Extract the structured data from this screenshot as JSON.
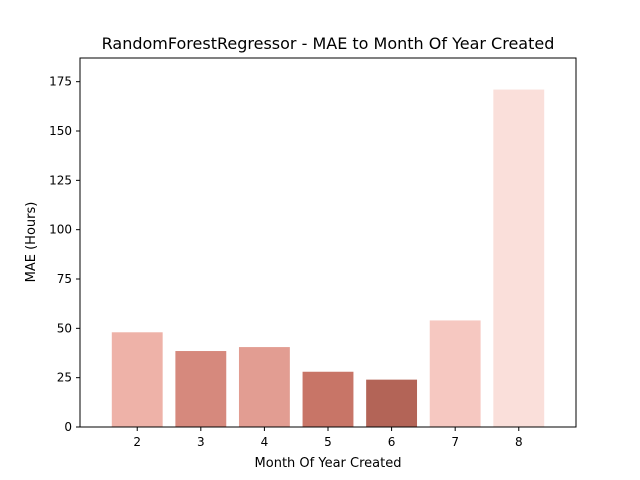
{
  "chart_data": {
    "type": "bar",
    "title": "RandomForestRegressor - MAE to Month Of Year Created",
    "xlabel": "Month Of Year Created",
    "ylabel": "MAE (Hours)",
    "categories": [
      "2",
      "3",
      "4",
      "5",
      "6",
      "7",
      "8"
    ],
    "values": [
      48,
      38.5,
      40.5,
      28,
      24,
      54,
      171
    ],
    "colors": [
      "#eeb2a8",
      "#d6897d",
      "#e29d92",
      "#c87567",
      "#b36457",
      "#f6c8c1",
      "#fadfda"
    ],
    "ylim": [
      0,
      187
    ],
    "yticks": [
      0,
      25,
      50,
      75,
      100,
      125,
      150,
      175
    ],
    "grid": false,
    "legend": "none"
  }
}
